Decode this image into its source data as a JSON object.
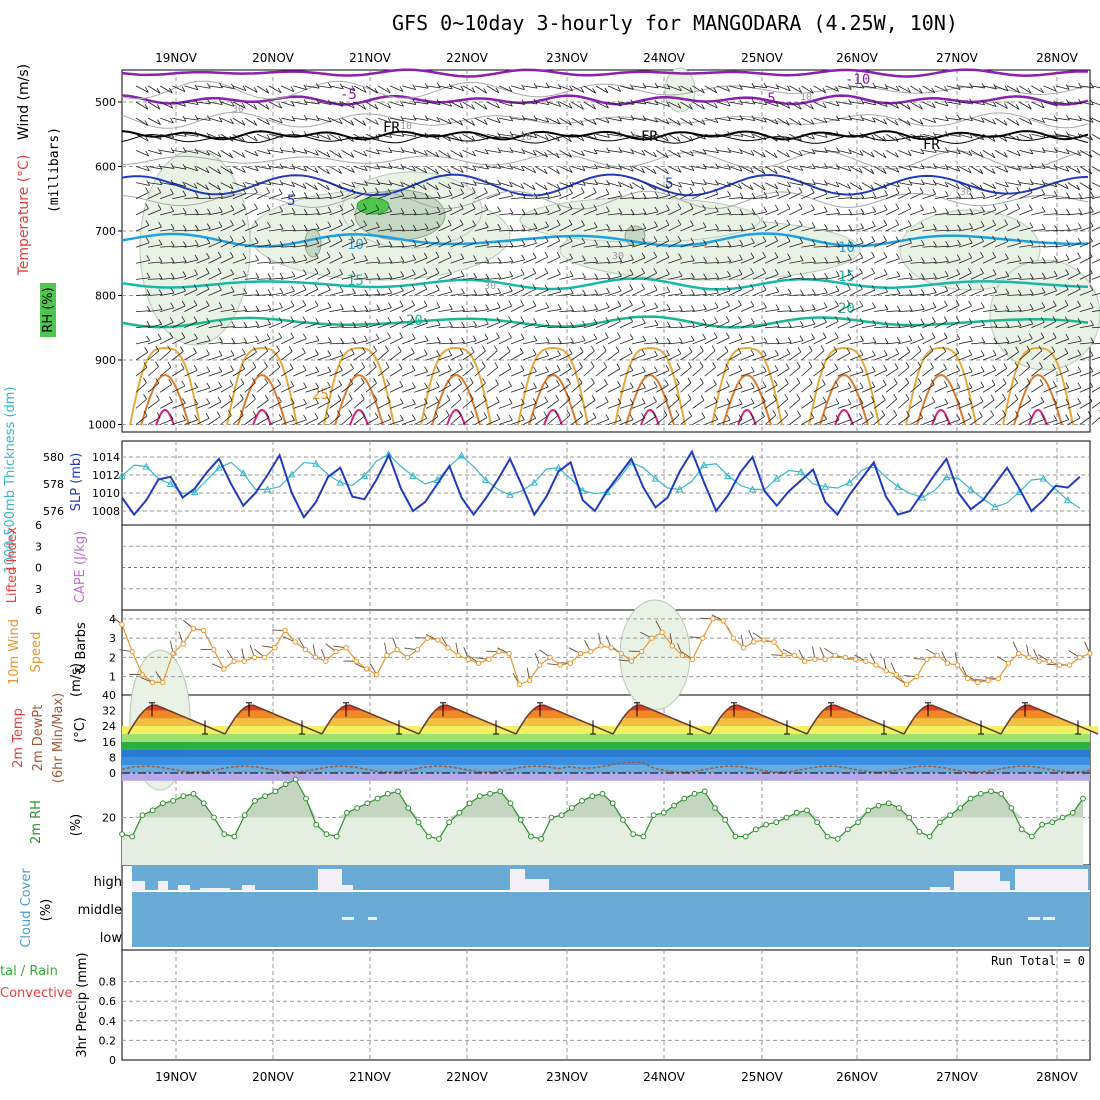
{
  "title": "GFS 0~10day 3-hourly for MANGODARA (4.25W, 10N)",
  "dates": [
    "19NOV",
    "20NOV",
    "21NOV",
    "22NOV",
    "23NOV",
    "24NOV",
    "25NOV",
    "26NOV",
    "27NOV",
    "28NOV"
  ],
  "colors": {
    "grid": "#9a9a9a",
    "rh_fill": "#e8f3e6",
    "rh_dark": "#9ab89a",
    "rh_green": "#4fc64f",
    "cloud": "#6aaad6",
    "cloud_white": "#f4f0f8",
    "thickness": "#38b8c8",
    "slp": "#1f3cc0",
    "wind10": "#e8962c",
    "rh2m": "#2f8f2f",
    "dewpt": "#a05a3a"
  },
  "panels": {
    "upper": {
      "ylabel_wind": "Wind (m/s)",
      "ylabel_temp": "Temperature (°C)",
      "ylabel_rh": "RH (%)",
      "ylabel_pressure": "(millibars)",
      "yticks": [
        "500",
        "600",
        "700",
        "800",
        "900",
        "1000"
      ],
      "contour_labels": [
        {
          "text": "-10",
          "color": "#8a1fb0"
        },
        {
          "text": "-5",
          "color": "#8a1fb0"
        },
        {
          "text": "-5",
          "color": "#8a1fb0"
        },
        {
          "text": "FR",
          "color": "#000000"
        },
        {
          "text": "FR",
          "color": "#000000"
        },
        {
          "text": "FR",
          "color": "#000000"
        },
        {
          "text": "5",
          "color": "#1f3cc0"
        },
        {
          "text": "5",
          "color": "#1f3cc0"
        },
        {
          "text": "10",
          "color": "#1fa0e0"
        },
        {
          "text": "10",
          "color": "#1fa0e0"
        },
        {
          "text": "15",
          "color": "#18b8a8"
        },
        {
          "text": "15",
          "color": "#18b8a8"
        },
        {
          "text": "20",
          "color": "#18b890"
        },
        {
          "text": "20",
          "color": "#18b890"
        },
        {
          "text": "25",
          "color": "#e8962c"
        },
        {
          "text": "30",
          "color": "#9a9a9a"
        },
        {
          "text": "30",
          "color": "#9a9a9a"
        },
        {
          "text": "30",
          "color": "#9a9a9a"
        },
        {
          "text": "10",
          "color": "#9a9a9a"
        },
        {
          "text": "10",
          "color": "#9a9a9a"
        },
        {
          "text": "10",
          "color": "#9a9a9a"
        },
        {
          "text": "30",
          "color": "#9a9a9a"
        }
      ]
    },
    "thickness": {
      "ylabel_left": "1000-500mb Thickness (dm)",
      "ylabel_right": "SLP (mb)",
      "left_ticks": [
        "580",
        "578",
        "576"
      ],
      "right_ticks": [
        "1014",
        "1012",
        "1010",
        "1008"
      ]
    },
    "cape": {
      "ylabel_li": "Lifted Index",
      "ylabel_cape": "CAPE (J/kg)",
      "yticks": [
        "6",
        "3",
        "0",
        "3",
        "6"
      ]
    },
    "wind10m": {
      "ylabel_1": "10m Wind",
      "ylabel_2": "Speed",
      "ylabel_3": "& Barbs",
      "ylabel_unit": "(m/s)",
      "yticks": [
        "4",
        "3",
        "2",
        "1"
      ]
    },
    "temp2m": {
      "ylabel_1": "2m Temp",
      "ylabel_2": "2m DewPt",
      "ylabel_3": "(6hr Min/Max)",
      "ylabel_unit": "(°C)",
      "yticks": [
        "40",
        "32",
        "24",
        "16",
        "8",
        "0"
      ]
    },
    "rh2m": {
      "ylabel": "2m RH",
      "ylabel_unit": "(%)",
      "yticks": [
        "20"
      ]
    },
    "cloud": {
      "ylabel": "Cloud Cover",
      "ylabel_unit": "(%)",
      "levels": [
        "high",
        "middle",
        "low"
      ]
    },
    "precip": {
      "ylabel_1": "tal / Rain",
      "ylabel_2": "Convective",
      "ylabel_3": "3hr Precip (mm)",
      "yticks": [
        "0.8",
        "0.6",
        "0.4",
        "0.2",
        "0"
      ],
      "run_total": "Run Total = 0"
    }
  },
  "chart_data": [
    {
      "type": "line",
      "name": "1000-500mb thickness / SLP",
      "x_unit": "3-hourly steps from 18NOV 12Z",
      "series": [
        {
          "name": "thickness",
          "unit": "dm",
          "values": [
            578.6,
            579.4,
            579.3,
            578.4,
            578.0,
            577.3,
            577.4,
            578.3,
            579.2,
            579.6,
            578.8,
            577.6,
            577.6,
            577.8,
            578.7,
            579.6,
            579.5,
            578.7,
            578.1,
            577.9,
            578.6,
            579.7,
            580.2,
            579.3,
            578.6,
            578.0,
            578.3,
            579.3,
            580.1,
            579.3,
            578.3,
            577.6,
            577.2,
            577.5,
            578.1,
            579.1,
            579.2,
            578.4,
            577.5,
            577.3,
            577.4,
            578.4,
            579.6,
            579.2,
            578.4,
            577.7,
            577.6,
            578.2,
            579.4,
            579.5,
            578.6,
            577.9,
            577.6,
            577.6,
            578.4,
            579.0,
            578.9,
            578.0,
            577.8,
            577.7,
            578.1,
            579.0,
            579.4,
            578.5,
            577.8,
            577.3,
            577.0,
            577.5,
            578.5,
            578.4,
            577.6,
            576.9,
            576.3,
            576.6,
            577.4,
            578.3,
            578.4,
            577.6,
            576.8,
            576.2
          ]
        },
        {
          "name": "SLP",
          "unit": "mb",
          "values": [
            1009.5,
            1007.6,
            1009.2,
            1011.5,
            1011.8,
            1009.5,
            1010.5,
            1012.3,
            1013.8,
            1011.0,
            1008.6,
            1010.0,
            1012.0,
            1014.2,
            1010.0,
            1007.3,
            1009.0,
            1011.8,
            1012.8,
            1009.6,
            1009.3,
            1011.5,
            1014.2,
            1010.5,
            1008.0,
            1009.0,
            1011.0,
            1013.0,
            1009.5,
            1007.6,
            1009.4,
            1011.5,
            1013.8,
            1010.8,
            1007.6,
            1009.6,
            1012.4,
            1013.4,
            1009.2,
            1008.0,
            1010.2,
            1012.0,
            1013.8,
            1010.6,
            1008.4,
            1009.5,
            1012.4,
            1014.6,
            1011.2,
            1008.0,
            1009.8,
            1012.3,
            1014.0,
            1010.2,
            1008.6,
            1010.2,
            1011.4,
            1012.6,
            1009.0,
            1007.6,
            1009.8,
            1011.6,
            1013.4,
            1009.6,
            1007.6,
            1008.0,
            1010.0,
            1012.0,
            1013.8,
            1010.0,
            1008.2,
            1009.2,
            1011.0,
            1012.8,
            1010.5,
            1008.0,
            1009.2,
            1010.8,
            1010.6,
            1011.8
          ]
        }
      ]
    },
    {
      "type": "line",
      "name": "10m wind speed",
      "unit": "m/s",
      "series": [
        {
          "name": "10m wind speed",
          "values": [
            3.7,
            2.3,
            1.1,
            0.7,
            0.7,
            2.2,
            2.7,
            3.5,
            3.4,
            2.4,
            1.4,
            1.8,
            1.8,
            2.0,
            2.0,
            2.5,
            3.4,
            2.8,
            2.4,
            2.0,
            1.8,
            2.3,
            2.5,
            1.8,
            1.4,
            1.1,
            2.1,
            2.4,
            2.0,
            2.4,
            3.0,
            2.9,
            2.5,
            2.1,
            1.9,
            1.7,
            1.9,
            2.3,
            2.2,
            0.6,
            0.8,
            1.6,
            2.0,
            1.6,
            1.7,
            2.2,
            2.3,
            2.6,
            2.5,
            2.2,
            1.8,
            2.3,
            3.0,
            3.3,
            2.6,
            2.1,
            1.9,
            3.0,
            4.0,
            3.9,
            3.0,
            2.5,
            2.8,
            2.9,
            2.8,
            2.1,
            2.1,
            1.8,
            1.9,
            1.9,
            2.1,
            2.0,
            1.9,
            1.8,
            1.6,
            1.3,
            1.1,
            0.6,
            1.0,
            1.9,
            2.1,
            1.7,
            1.6,
            0.9,
            0.7,
            0.8,
            0.9,
            1.7,
            2.2,
            2.0,
            1.8,
            1.8,
            1.6,
            1.6,
            2.0,
            2.2
          ]
        }
      ]
    },
    {
      "type": "area",
      "name": "2m temperature",
      "unit": "°C",
      "max_per_day": [
        35,
        36,
        36,
        36,
        36,
        36,
        36,
        36,
        36,
        36
      ],
      "min_per_day": [
        20,
        20,
        20,
        20,
        20,
        20,
        20,
        20,
        20,
        20
      ],
      "dewpoint_range": [
        0,
        4
      ]
    },
    {
      "type": "line",
      "name": "2m RH",
      "unit": "%",
      "series": [
        {
          "name": "2m RH",
          "values": [
            13,
            12,
            21,
            23,
            26,
            27,
            29,
            30,
            26,
            20,
            13,
            12,
            21,
            27,
            29,
            31,
            34,
            36,
            28,
            17,
            13,
            12,
            22,
            24,
            26,
            28,
            30,
            31,
            24,
            18,
            12,
            11,
            18,
            22,
            26,
            29,
            30,
            31,
            26,
            19,
            12,
            11,
            20,
            21,
            24,
            27,
            29,
            30,
            26,
            19,
            13,
            12,
            21,
            22,
            25,
            28,
            30,
            31,
            24,
            19,
            12,
            12,
            15,
            17,
            18,
            20,
            22,
            23,
            18,
            12,
            11,
            15,
            18,
            23,
            25,
            26,
            24,
            20,
            14,
            12,
            18,
            21,
            24,
            28,
            30,
            31,
            30,
            24,
            15,
            12,
            17,
            18,
            20,
            22,
            28
          ]
        }
      ]
    }
  ]
}
